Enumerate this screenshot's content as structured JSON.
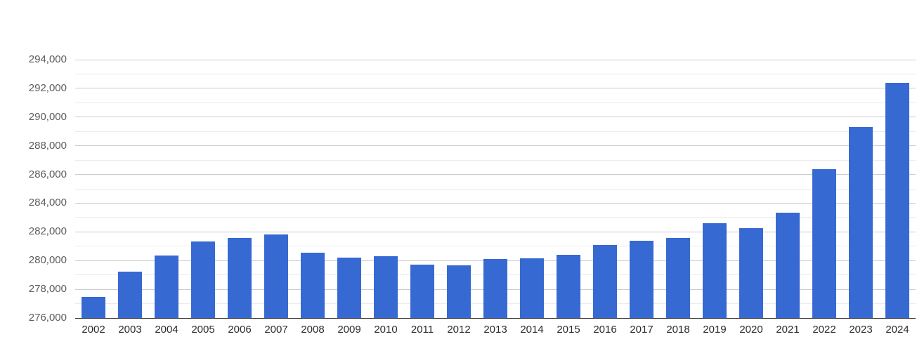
{
  "chart_data": {
    "type": "bar",
    "title": "",
    "xlabel": "",
    "ylabel": "",
    "categories": [
      "2002",
      "2003",
      "2004",
      "2005",
      "2006",
      "2007",
      "2008",
      "2009",
      "2010",
      "2011",
      "2012",
      "2013",
      "2014",
      "2015",
      "2016",
      "2017",
      "2018",
      "2019",
      "2020",
      "2021",
      "2022",
      "2023",
      "2024"
    ],
    "values": [
      277450,
      279250,
      280350,
      281350,
      281600,
      281800,
      280550,
      280200,
      280300,
      279700,
      279650,
      280100,
      280150,
      280400,
      281100,
      281400,
      281600,
      282600,
      282250,
      283350,
      286350,
      289300,
      292400
    ],
    "ylim": [
      276000,
      294000
    ],
    "y_major_tick_step": 2000,
    "y_minor_tick_step": 1000,
    "y_tick_labels": [
      "276,000",
      "278,000",
      "280,000",
      "282,000",
      "284,000",
      "286,000",
      "288,000",
      "290,000",
      "292,000",
      "294,000"
    ],
    "grid": true,
    "legend_position": "none",
    "colors": {
      "bar": "#3769D2",
      "major_gridline": "#cccccc",
      "minor_gridline": "#ebebeb",
      "axis_line": "#333333",
      "y_tick_label": "#5c5c5c",
      "x_tick_label": "#2b2b2b",
      "background": "#ffffff"
    }
  }
}
